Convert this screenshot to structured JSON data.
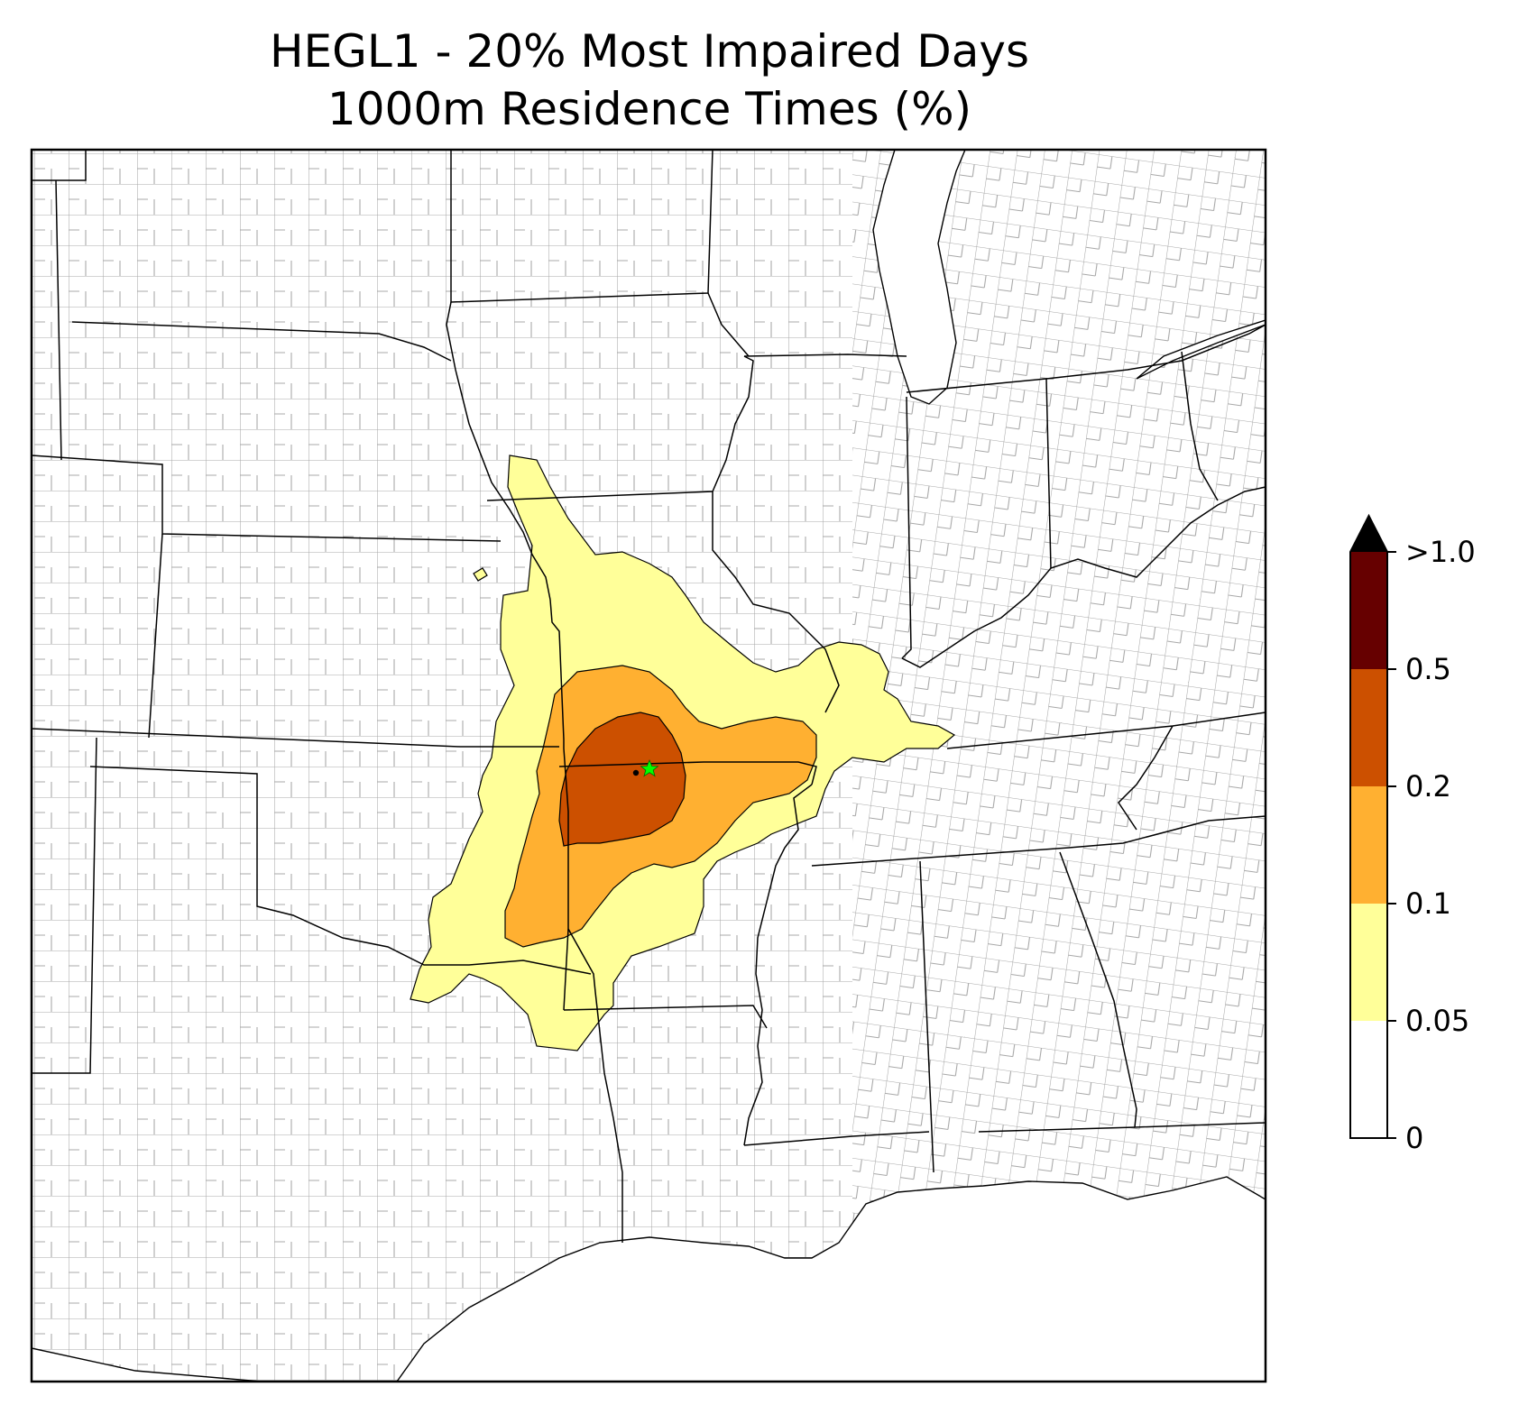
{
  "title": {
    "line1": "HEGL1 - 20% Most Impaired Days",
    "line2": "1000m Residence Times (%)"
  },
  "colorbar": {
    "levels": [
      {
        "label": "0",
        "color": "#ffffff"
      },
      {
        "label": "0.05",
        "color": "#ffff99"
      },
      {
        "label": "0.1",
        "color": "#ffb031"
      },
      {
        "label": "0.2",
        "color": "#cc5000"
      },
      {
        "label": "0.5",
        "color": "#660000"
      },
      {
        "label": ">1.0",
        "color": "#000000"
      }
    ],
    "extend": "max"
  },
  "colors": {
    "county_lines": "#a8a8a8",
    "state_lines": "#000000",
    "site_marker": "#00ff00"
  },
  "marker": {
    "icon": "star-icon"
  }
}
